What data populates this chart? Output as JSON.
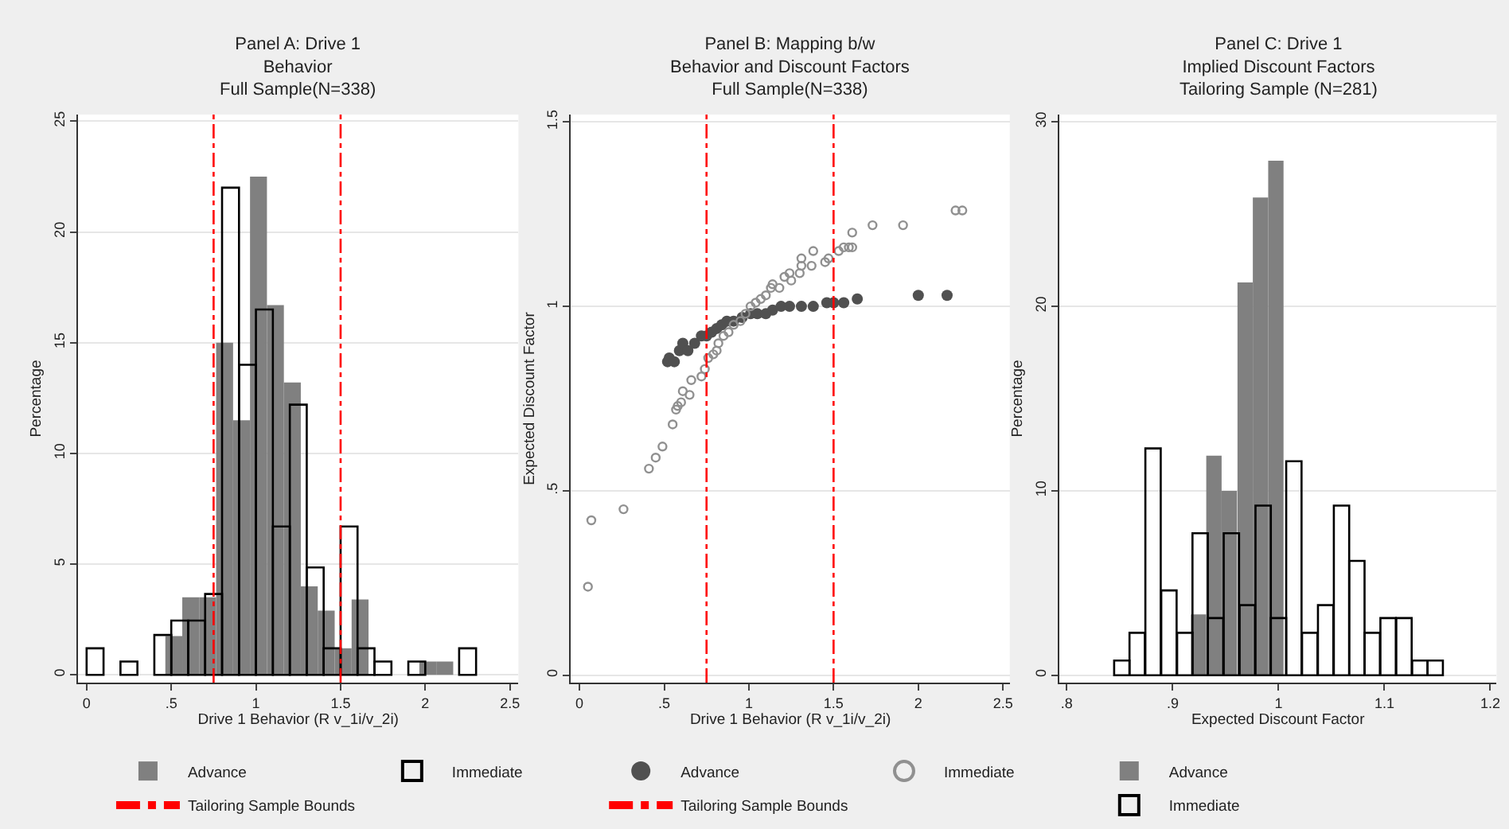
{
  "chart_data": [
    {
      "type": "bar",
      "title": "Panel A: Drive 1\nBehavior\nFull Sample(N=338)",
      "xlabel": "Drive 1 Behavior (R v_1i/v_2i)",
      "ylabel": "Percentage",
      "series": [
        {
          "name": "Advance",
          "color": "#808080",
          "x": [
            0.515,
            0.615,
            0.715,
            0.815,
            0.915,
            1.015,
            1.115,
            1.215,
            1.315,
            1.415,
            1.515,
            1.615,
            2.015,
            2.115
          ],
          "values": [
            1.75,
            3.5,
            3.5,
            15,
            11.5,
            22.5,
            16.7,
            13.2,
            4,
            2.9,
            1.2,
            3.4,
            0.6,
            0.6
          ]
        },
        {
          "name": "Immediate",
          "color": "#000000",
          "x": [
            0.05,
            0.25,
            0.45,
            0.55,
            0.65,
            0.75,
            0.85,
            0.95,
            1.05,
            1.15,
            1.25,
            1.35,
            1.45,
            1.55,
            1.65,
            1.75,
            1.95,
            2.25
          ],
          "values": [
            1.2,
            0.6,
            1.8,
            2.45,
            2.45,
            3.65,
            22,
            14,
            16.5,
            6.7,
            12.2,
            4.85,
            1.2,
            6.7,
            1.2,
            0.6,
            0.6,
            1.2
          ]
        }
      ],
      "ref_lines": [
        {
          "axis": "x",
          "value": 0.75,
          "label": "Tailoring Sample Bounds",
          "color": "#ff0000",
          "line_style": "dashdot"
        },
        {
          "axis": "x",
          "value": 1.5,
          "label": null,
          "color": "#ff0000",
          "line_style": "dashdot"
        }
      ],
      "xlim": [
        -0.05,
        2.55
      ],
      "ylim": [
        -0.35,
        25.3
      ],
      "xticks": [
        0,
        {
          "value": 0.5,
          "label": ".5"
        },
        1,
        1.5,
        2,
        2.5
      ],
      "yticks": [
        0,
        5,
        10,
        15,
        20,
        25
      ],
      "grid": "y",
      "legend": "bottom"
    },
    {
      "type": "scatter",
      "title": "Panel B: Mapping b/w\nBehavior and Discount Factors\nFull Sample(N=338)",
      "xlabel": "Drive 1 Behavior (R v_1i/v_2i)",
      "ylabel": "Expected Discount Factor",
      "series": [
        {
          "name": "Advance",
          "color": "#505050",
          "marker": "circle",
          "x": [
            0.52,
            0.53,
            0.56,
            0.59,
            0.61,
            0.64,
            0.68,
            0.72,
            0.75,
            0.78,
            0.81,
            0.84,
            0.87,
            0.91,
            0.96,
            1.01,
            1.05,
            1.1,
            1.14,
            1.19,
            1.24,
            1.31,
            1.38,
            1.46,
            1.5,
            1.56,
            1.64,
            2.0,
            2.17
          ],
          "values": [
            0.85,
            0.86,
            0.85,
            0.88,
            0.9,
            0.88,
            0.9,
            0.92,
            0.92,
            0.93,
            0.94,
            0.95,
            0.96,
            0.96,
            0.97,
            0.98,
            0.98,
            0.98,
            0.99,
            1.0,
            1.0,
            1.0,
            1.0,
            1.01,
            1.01,
            1.01,
            1.02,
            1.03,
            1.03
          ]
        },
        {
          "name": "Immediate",
          "color": "#909090",
          "marker": "circle-open",
          "x": [
            0.05,
            0.07,
            0.26,
            0.41,
            0.45,
            0.49,
            0.55,
            0.57,
            0.58,
            0.6,
            0.61,
            0.65,
            0.66,
            0.72,
            0.74,
            0.76,
            0.79,
            0.81,
            0.82,
            0.85,
            0.88,
            0.91,
            0.95,
            0.98,
            1.01,
            1.04,
            1.07,
            1.1,
            1.13,
            1.14,
            1.18,
            1.21,
            1.24,
            1.25,
            1.3,
            1.31,
            1.31,
            1.37,
            1.38,
            1.45,
            1.47,
            1.53,
            1.56,
            1.59,
            1.61,
            1.61,
            1.73,
            1.91,
            2.22,
            2.26
          ],
          "values": [
            0.24,
            0.42,
            0.45,
            0.56,
            0.59,
            0.62,
            0.68,
            0.72,
            0.73,
            0.74,
            0.77,
            0.76,
            0.8,
            0.81,
            0.83,
            0.86,
            0.87,
            0.88,
            0.9,
            0.92,
            0.93,
            0.95,
            0.96,
            0.98,
            1.0,
            1.01,
            1.02,
            1.03,
            1.05,
            1.06,
            1.05,
            1.08,
            1.09,
            1.07,
            1.09,
            1.13,
            1.11,
            1.11,
            1.15,
            1.12,
            1.13,
            1.15,
            1.16,
            1.16,
            1.2,
            1.16,
            1.22,
            1.22,
            1.26,
            1.26
          ]
        }
      ],
      "ref_lines": [
        {
          "axis": "x",
          "value": 0.75,
          "label": "Tailoring Sample Bounds",
          "color": "#ff0000",
          "line_style": "dashdot"
        },
        {
          "axis": "x",
          "value": 1.5,
          "label": null,
          "color": "#ff0000",
          "line_style": "dashdot"
        }
      ],
      "xlim": [
        -0.05,
        2.54
      ],
      "ylim": [
        -0.02,
        1.52
      ],
      "xticks": [
        0,
        {
          "value": 0.5,
          "label": ".5"
        },
        1,
        1.5,
        2,
        2.5
      ],
      "yticks": [
        0,
        {
          "value": 0.5,
          "label": ".5"
        },
        1,
        1.5
      ],
      "grid": "y",
      "legend": "bottom"
    },
    {
      "type": "bar",
      "title": "Panel C: Drive 1\nImplied Discount Factors\nTailoring Sample (N=281)",
      "xlabel": "Expected Discount Factor",
      "ylabel": "Percentage",
      "series": [
        {
          "name": "Advance",
          "color": "#808080",
          "x": [
            0.9245,
            0.939,
            0.9535,
            0.9685,
            0.983,
            0.9975
          ],
          "values": [
            3.3,
            11.9,
            10.0,
            21.3,
            25.9,
            27.9
          ]
        },
        {
          "name": "Immediate",
          "color": "#000000",
          "x": [
            0.852,
            0.8665,
            0.8815,
            0.8965,
            0.9115,
            0.926,
            0.9405,
            0.9555,
            0.9705,
            0.9855,
            1.0,
            1.0145,
            1.0295,
            1.0445,
            1.0595,
            1.074,
            1.0885,
            1.1035,
            1.1185,
            1.1335,
            1.148
          ],
          "values": [
            0.8,
            2.3,
            12.3,
            4.6,
            2.3,
            7.7,
            3.1,
            7.7,
            3.8,
            9.2,
            3.1,
            11.6,
            2.3,
            3.8,
            9.2,
            6.2,
            2.3,
            3.1,
            3.1,
            0.8,
            0.8
          ]
        }
      ],
      "xlim": [
        0.793,
        1.206
      ],
      "ylim": [
        -0.4,
        30.4
      ],
      "xticks": [
        {
          "value": 0.8,
          "label": ".8"
        },
        {
          "value": 0.9,
          "label": ".9"
        },
        1,
        1.1,
        1.2
      ],
      "yticks": [
        0,
        10,
        20,
        30
      ],
      "grid": "y",
      "legend": "bottom"
    }
  ]
}
